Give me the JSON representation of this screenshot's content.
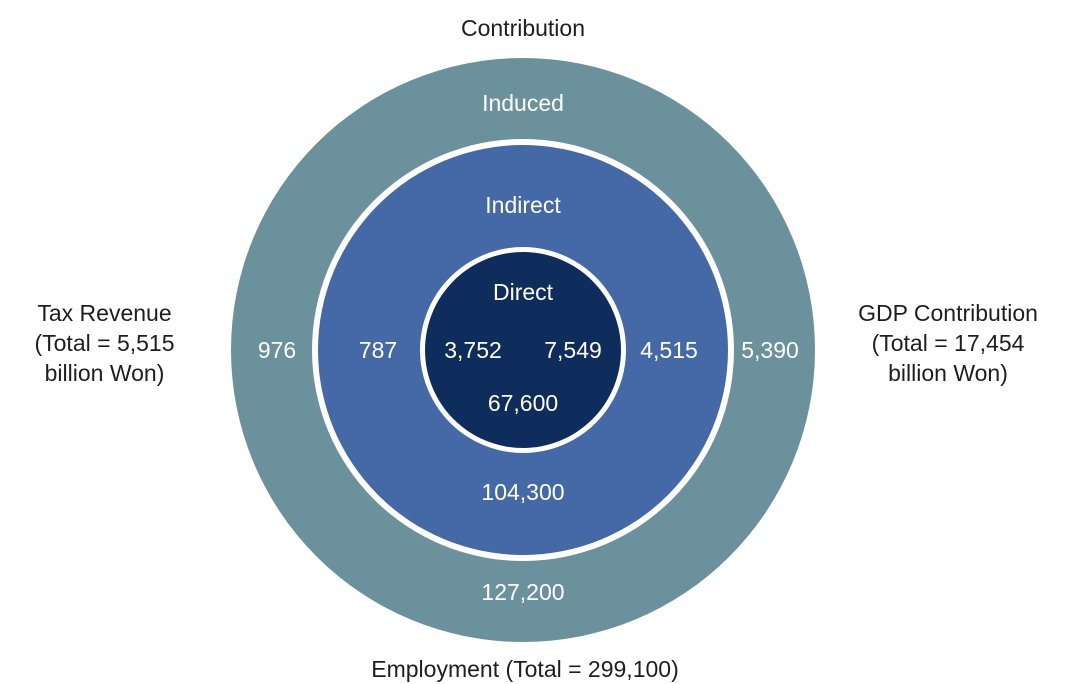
{
  "title": "Contribution",
  "colors": {
    "induced": "#6b919d",
    "indirect": "#4469a6",
    "direct": "#0f2d5c",
    "divider": "#ffffff",
    "label_on_ring": "#ffffff",
    "label_outside": "#1e1e1e"
  },
  "rings": {
    "induced": {
      "label": "Induced",
      "tax": "976",
      "gdp": "5,390",
      "employment": "127,200"
    },
    "indirect": {
      "label": "Indirect",
      "tax": "787",
      "gdp": "4,515",
      "employment": "104,300"
    },
    "direct": {
      "label": "Direct",
      "tax": "3,752",
      "gdp": "7,549",
      "employment": "67,600"
    }
  },
  "labels": {
    "tax": [
      "Tax Revenue",
      "(Total = 5,515",
      "billion Won)"
    ],
    "gdp": [
      "GDP Contribution",
      "(Total = 17,454",
      "billion Won)"
    ],
    "employment": "Employment (Total = 299,100)"
  }
}
